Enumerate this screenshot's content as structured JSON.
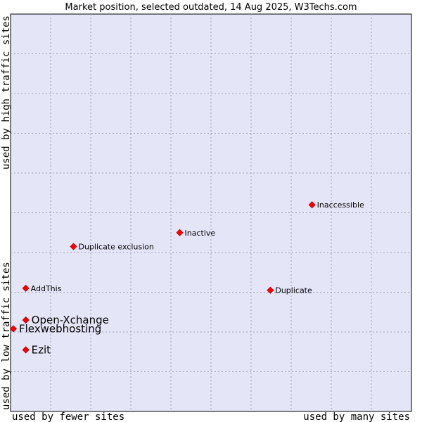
{
  "chart_data": {
    "type": "scatter",
    "title": "Market position, selected outdated, 14 Aug 2025, W3Techs.com",
    "xlabel_low": "used by fewer sites",
    "xlabel_high": "used by many sites",
    "ylabel_low": "used by low traffic sites",
    "ylabel_high": "used by high traffic sites",
    "xlim": [
      0,
      100
    ],
    "ylim": [
      0,
      100
    ],
    "grid": true,
    "colors": {
      "plot_background": "#e5e5f8",
      "grid": "#a0a0b8",
      "marker": "#ff0000",
      "marker_edge": "#b00000"
    },
    "points": [
      {
        "name": "Inaccessible",
        "x": 75.2,
        "y": 52.0,
        "emphasis": false
      },
      {
        "name": "Inactive",
        "x": 42.2,
        "y": 45.0,
        "emphasis": false
      },
      {
        "name": "Duplicate exclusion",
        "x": 15.7,
        "y": 41.5,
        "emphasis": false
      },
      {
        "name": "AddThis",
        "x": 3.8,
        "y": 31.0,
        "emphasis": false
      },
      {
        "name": "Duplicate",
        "x": 64.8,
        "y": 30.5,
        "emphasis": false
      },
      {
        "name": "Open-Xchange",
        "x": 3.8,
        "y": 23.0,
        "emphasis": true
      },
      {
        "name": "Flexwebhosting",
        "x": 0.7,
        "y": 20.8,
        "emphasis": true
      },
      {
        "name": "Ezit",
        "x": 3.8,
        "y": 15.5,
        "emphasis": true
      }
    ]
  }
}
